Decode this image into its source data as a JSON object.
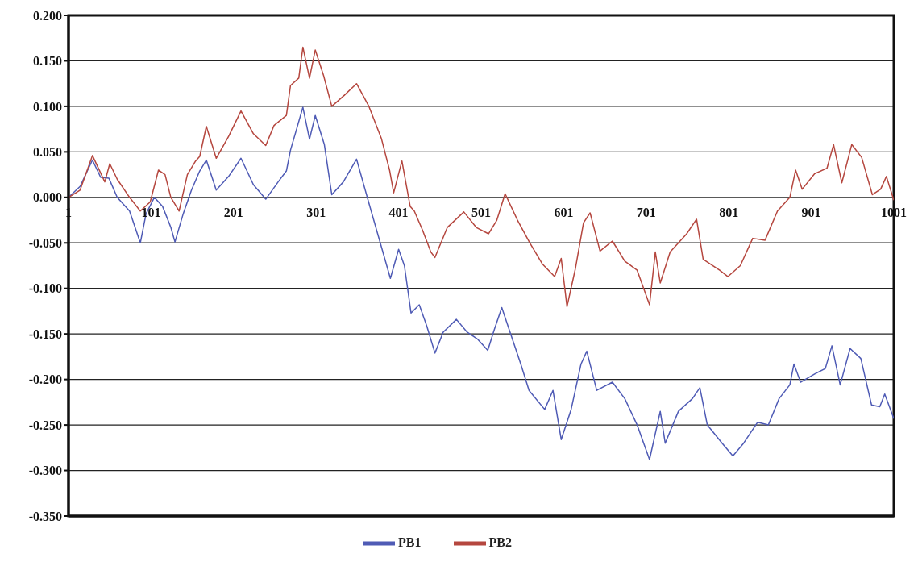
{
  "chart_data": {
    "type": "line",
    "xlim": [
      1,
      1001
    ],
    "xticks": [
      1,
      101,
      201,
      301,
      401,
      501,
      601,
      701,
      801,
      901,
      1001
    ],
    "ylim": [
      -0.35,
      0.2
    ],
    "yticks": [
      {
        "value": 0.2,
        "label": "0.200"
      },
      {
        "value": 0.15,
        "label": "0.150"
      },
      {
        "value": 0.1,
        "label": "0.100"
      },
      {
        "value": 0.05,
        "label": "0.050"
      },
      {
        "value": 0,
        "label": "0.000"
      },
      {
        "value": -0.05,
        "label": "-0.050"
      },
      {
        "value": -0.1,
        "label": "-0.100"
      },
      {
        "value": -0.15,
        "label": "-0.150"
      },
      {
        "value": -0.2,
        "label": "-0.200"
      },
      {
        "value": -0.25,
        "label": "-0.250"
      },
      {
        "value": -0.3,
        "label": "-0.300"
      },
      {
        "value": -0.35,
        "label": "-0.350"
      }
    ],
    "grid": "y",
    "legend": "bottom",
    "marker": "none",
    "line_style": "solid",
    "series": [
      {
        "name": "PB1",
        "color": "#4f5bb5",
        "x": [
          1,
          15,
          30,
          40,
          50,
          60,
          75,
          88,
          95,
          105,
          115,
          125,
          130,
          140,
          150,
          160,
          168,
          180,
          195,
          210,
          225,
          240,
          255,
          265,
          270,
          285,
          293,
          300,
          311,
          320,
          334,
          350,
          363,
          380,
          391,
          401,
          408,
          416,
          426,
          435,
          445,
          455,
          471,
          484,
          497,
          509,
          517,
          526,
          536,
          549,
          559,
          578,
          588,
          598,
          610,
          622,
          629,
          641,
          660,
          675,
          690,
          705,
          718,
          724,
          740,
          757,
          766,
          775,
          793,
          806,
          819,
          836,
          849,
          862,
          875,
          880,
          888,
          905,
          918,
          926,
          936,
          948,
          961,
          974,
          984,
          990,
          1001
        ],
        "values": [
          0,
          0.012,
          0.041,
          0.022,
          0.021,
          0,
          -0.015,
          -0.05,
          -0.018,
          0,
          -0.01,
          -0.033,
          -0.049,
          -0.018,
          0.008,
          0.029,
          0.041,
          0.008,
          0.023,
          0.043,
          0.014,
          -0.002,
          0.017,
          0.029,
          0.052,
          0.099,
          0.064,
          0.09,
          0.058,
          0.003,
          0.017,
          0.042,
          0,
          -0.054,
          -0.089,
          -0.057,
          -0.075,
          -0.127,
          -0.118,
          -0.141,
          -0.171,
          -0.148,
          -0.134,
          -0.148,
          -0.156,
          -0.168,
          -0.145,
          -0.121,
          -0.148,
          -0.183,
          -0.212,
          -0.233,
          -0.212,
          -0.266,
          -0.233,
          -0.183,
          -0.169,
          -0.212,
          -0.203,
          -0.221,
          -0.25,
          -0.288,
          -0.235,
          -0.27,
          -0.235,
          -0.221,
          -0.209,
          -0.25,
          -0.27,
          -0.284,
          -0.27,
          -0.247,
          -0.25,
          -0.221,
          -0.206,
          -0.183,
          -0.203,
          -0.194,
          -0.188,
          -0.163,
          -0.206,
          -0.166,
          -0.177,
          -0.228,
          -0.23,
          -0.216,
          -0.243
        ]
      },
      {
        "name": "PB2",
        "color": "#b5473f",
        "x": [
          1,
          15,
          30,
          45,
          51,
          60,
          75,
          88,
          100,
          110,
          118,
          125,
          135,
          145,
          155,
          160,
          168,
          180,
          195,
          210,
          225,
          240,
          250,
          265,
          270,
          280,
          285,
          293,
          300,
          310,
          320,
          335,
          350,
          365,
          380,
          390,
          395,
          405,
          415,
          420,
          430,
          440,
          445,
          460,
          480,
          495,
          510,
          520,
          530,
          545,
          560,
          575,
          590,
          598,
          605,
          615,
          625,
          633,
          645,
          660,
          675,
          690,
          705,
          712,
          718,
          730,
          750,
          762,
          770,
          790,
          800,
          815,
          830,
          845,
          860,
          875,
          882,
          890,
          905,
          920,
          928,
          938,
          950,
          962,
          975,
          985,
          992,
          1001
        ],
        "values": [
          0,
          0.008,
          0.046,
          0.017,
          0.037,
          0.02,
          0,
          -0.015,
          -0.005,
          0.03,
          0.025,
          0,
          -0.015,
          0.025,
          0.04,
          0.045,
          0.078,
          0.043,
          0.067,
          0.095,
          0.07,
          0.057,
          0.079,
          0.09,
          0.123,
          0.131,
          0.165,
          0.131,
          0.162,
          0.134,
          0.1,
          0.112,
          0.125,
          0.1,
          0.065,
          0.03,
          0.005,
          0.04,
          -0.01,
          -0.015,
          -0.036,
          -0.06,
          -0.066,
          -0.033,
          -0.016,
          -0.033,
          -0.04,
          -0.025,
          0.004,
          -0.025,
          -0.05,
          -0.073,
          -0.087,
          -0.067,
          -0.12,
          -0.079,
          -0.028,
          -0.017,
          -0.059,
          -0.048,
          -0.07,
          -0.08,
          -0.118,
          -0.06,
          -0.094,
          -0.06,
          -0.04,
          -0.024,
          -0.068,
          -0.08,
          -0.087,
          -0.075,
          -0.045,
          -0.047,
          -0.015,
          0,
          0.03,
          0.009,
          0.026,
          0.032,
          0.058,
          0.016,
          0.058,
          0.044,
          0.003,
          0.009,
          0.023,
          -0.003
        ]
      }
    ]
  }
}
